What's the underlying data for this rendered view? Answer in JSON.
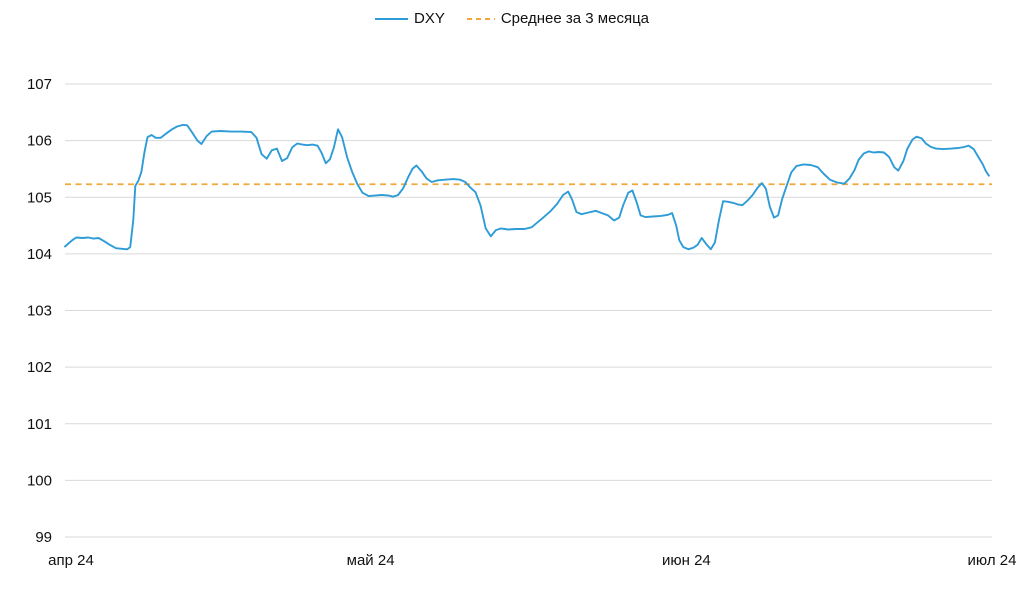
{
  "legend": {
    "items": [
      {
        "label": "DXY",
        "swatch": "solid-line",
        "color": "#2e9cd6"
      },
      {
        "label": "Среднее за 3 месяца",
        "swatch": "dashed-line",
        "color": "#f0a83a"
      }
    ]
  },
  "colors": {
    "dxy_line": "#2e9cd6",
    "average_line": "#f0a83a",
    "gridline": "#d9d9d9",
    "axis_text": "#111111",
    "background": "#ffffff"
  },
  "chart_data": {
    "type": "line",
    "title": "",
    "xlabel": "",
    "ylabel": "",
    "grid": "horizontal-only",
    "legend_position": "top-center",
    "y_axis": {
      "ticks": [
        99,
        100,
        101,
        102,
        103,
        104,
        105,
        106,
        107
      ],
      "range": [
        99,
        107
      ]
    },
    "x_axis": {
      "tick_labels": [
        "апр 24",
        "май 24",
        "июн 24",
        "июл 24"
      ],
      "tick_days": [
        0,
        30,
        61,
        91
      ],
      "domain_days": [
        0,
        91
      ]
    },
    "series": [
      {
        "name": "DXY",
        "color": "#2e9cd6",
        "style": "solid",
        "points": [
          [
            0,
            104.13
          ],
          [
            0.7,
            104.24
          ],
          [
            1.1,
            104.29
          ],
          [
            1.7,
            104.28
          ],
          [
            2.3,
            104.29
          ],
          [
            2.8,
            104.27
          ],
          [
            3.3,
            104.28
          ],
          [
            3.8,
            104.23
          ],
          [
            4.4,
            104.16
          ],
          [
            5.0,
            104.1
          ],
          [
            5.6,
            104.09
          ],
          [
            6.1,
            104.08
          ],
          [
            6.4,
            104.12
          ],
          [
            6.7,
            104.6
          ],
          [
            6.9,
            105.2
          ],
          [
            7.2,
            105.29
          ],
          [
            7.5,
            105.45
          ],
          [
            7.8,
            105.8
          ],
          [
            8.1,
            106.06
          ],
          [
            8.5,
            106.1
          ],
          [
            8.9,
            106.05
          ],
          [
            9.4,
            106.05
          ],
          [
            9.9,
            106.12
          ],
          [
            10.5,
            106.2
          ],
          [
            11.0,
            106.25
          ],
          [
            11.6,
            106.28
          ],
          [
            12.0,
            106.27
          ],
          [
            12.5,
            106.14
          ],
          [
            13.0,
            106.0
          ],
          [
            13.4,
            105.94
          ],
          [
            13.9,
            106.08
          ],
          [
            14.4,
            106.16
          ],
          [
            15.3,
            106.17
          ],
          [
            16.3,
            106.16
          ],
          [
            17.3,
            106.16
          ],
          [
            18.3,
            106.15
          ],
          [
            18.8,
            106.05
          ],
          [
            19.3,
            105.76
          ],
          [
            19.8,
            105.68
          ],
          [
            20.3,
            105.83
          ],
          [
            20.8,
            105.86
          ],
          [
            21.3,
            105.64
          ],
          [
            21.8,
            105.69
          ],
          [
            22.3,
            105.88
          ],
          [
            22.8,
            105.95
          ],
          [
            23.3,
            105.93
          ],
          [
            23.8,
            105.92
          ],
          [
            24.3,
            105.93
          ],
          [
            24.8,
            105.91
          ],
          [
            25.2,
            105.78
          ],
          [
            25.6,
            105.6
          ],
          [
            26.0,
            105.67
          ],
          [
            26.4,
            105.88
          ],
          [
            26.8,
            106.2
          ],
          [
            27.2,
            106.06
          ],
          [
            27.7,
            105.7
          ],
          [
            28.2,
            105.44
          ],
          [
            28.7,
            105.23
          ],
          [
            29.2,
            105.08
          ],
          [
            29.8,
            105.02
          ],
          [
            30.4,
            105.03
          ],
          [
            31.1,
            105.04
          ],
          [
            31.8,
            105.03
          ],
          [
            32.2,
            105.01
          ],
          [
            32.7,
            105.04
          ],
          [
            33.2,
            105.16
          ],
          [
            33.7,
            105.36
          ],
          [
            34.1,
            105.5
          ],
          [
            34.5,
            105.56
          ],
          [
            35.0,
            105.46
          ],
          [
            35.5,
            105.33
          ],
          [
            36.0,
            105.27
          ],
          [
            36.6,
            105.3
          ],
          [
            37.3,
            105.31
          ],
          [
            38.1,
            105.32
          ],
          [
            38.8,
            105.31
          ],
          [
            39.3,
            105.27
          ],
          [
            39.8,
            105.17
          ],
          [
            40.3,
            105.09
          ],
          [
            40.8,
            104.85
          ],
          [
            41.3,
            104.45
          ],
          [
            41.8,
            104.31
          ],
          [
            42.3,
            104.42
          ],
          [
            42.8,
            104.45
          ],
          [
            43.5,
            104.43
          ],
          [
            44.3,
            104.44
          ],
          [
            45.1,
            104.44
          ],
          [
            45.8,
            104.47
          ],
          [
            46.4,
            104.56
          ],
          [
            47.0,
            104.65
          ],
          [
            47.7,
            104.76
          ],
          [
            48.3,
            104.88
          ],
          [
            48.9,
            105.04
          ],
          [
            49.4,
            105.1
          ],
          [
            49.8,
            104.95
          ],
          [
            50.2,
            104.74
          ],
          [
            50.7,
            104.7
          ],
          [
            51.4,
            104.73
          ],
          [
            52.1,
            104.76
          ],
          [
            52.7,
            104.72
          ],
          [
            53.3,
            104.68
          ],
          [
            53.9,
            104.59
          ],
          [
            54.4,
            104.64
          ],
          [
            54.8,
            104.86
          ],
          [
            55.3,
            105.08
          ],
          [
            55.7,
            105.12
          ],
          [
            56.1,
            104.92
          ],
          [
            56.5,
            104.68
          ],
          [
            57.0,
            104.65
          ],
          [
            57.7,
            104.66
          ],
          [
            58.5,
            104.67
          ],
          [
            59.2,
            104.69
          ],
          [
            59.6,
            104.72
          ],
          [
            60.0,
            104.5
          ],
          [
            60.3,
            104.24
          ],
          [
            60.7,
            104.12
          ],
          [
            61.2,
            104.08
          ],
          [
            61.7,
            104.11
          ],
          [
            62.1,
            104.16
          ],
          [
            62.5,
            104.28
          ],
          [
            63.0,
            104.16
          ],
          [
            63.4,
            104.08
          ],
          [
            63.8,
            104.2
          ],
          [
            64.2,
            104.6
          ],
          [
            64.6,
            104.93
          ],
          [
            65.1,
            104.92
          ],
          [
            65.6,
            104.9
          ],
          [
            66.1,
            104.87
          ],
          [
            66.5,
            104.86
          ],
          [
            67.0,
            104.94
          ],
          [
            67.5,
            105.04
          ],
          [
            68.0,
            105.17
          ],
          [
            68.4,
            105.25
          ],
          [
            68.8,
            105.15
          ],
          [
            69.2,
            104.83
          ],
          [
            69.6,
            104.64
          ],
          [
            70.0,
            104.68
          ],
          [
            70.4,
            104.97
          ],
          [
            70.9,
            105.23
          ],
          [
            71.3,
            105.44
          ],
          [
            71.8,
            105.55
          ],
          [
            72.5,
            105.58
          ],
          [
            73.2,
            105.57
          ],
          [
            73.9,
            105.53
          ],
          [
            74.5,
            105.41
          ],
          [
            75.1,
            105.31
          ],
          [
            75.8,
            105.26
          ],
          [
            76.5,
            105.24
          ],
          [
            77.0,
            105.33
          ],
          [
            77.5,
            105.48
          ],
          [
            77.9,
            105.66
          ],
          [
            78.4,
            105.77
          ],
          [
            78.9,
            105.81
          ],
          [
            79.4,
            105.79
          ],
          [
            79.9,
            105.8
          ],
          [
            80.4,
            105.79
          ],
          [
            80.9,
            105.71
          ],
          [
            81.4,
            105.53
          ],
          [
            81.8,
            105.47
          ],
          [
            82.3,
            105.64
          ],
          [
            82.7,
            105.86
          ],
          [
            83.2,
            106.02
          ],
          [
            83.6,
            106.07
          ],
          [
            84.1,
            106.04
          ],
          [
            84.5,
            105.95
          ],
          [
            85.0,
            105.89
          ],
          [
            85.5,
            105.86
          ],
          [
            86.2,
            105.85
          ],
          [
            87.0,
            105.86
          ],
          [
            87.7,
            105.87
          ],
          [
            88.3,
            105.89
          ],
          [
            88.7,
            105.91
          ],
          [
            89.2,
            105.85
          ],
          [
            89.6,
            105.73
          ],
          [
            90.1,
            105.58
          ],
          [
            90.4,
            105.46
          ],
          [
            90.7,
            105.38
          ]
        ]
      },
      {
        "name": "Среднее за 3 месяца",
        "color": "#f0a83a",
        "style": "dashed",
        "value": 105.23
      }
    ]
  }
}
